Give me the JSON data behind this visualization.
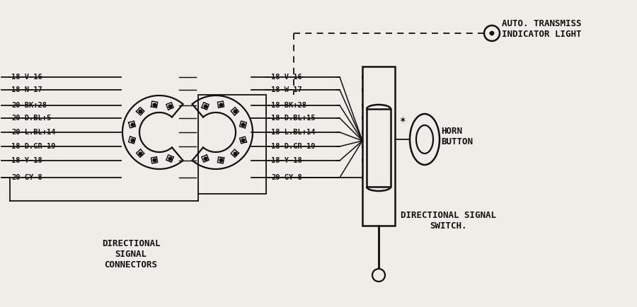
{
  "bg_color": "#f0ede8",
  "line_color": "#111111",
  "wire_labels_left": [
    "18-V-16",
    "18-N-17",
    "20-BK:28",
    "20-D.BL:5",
    "20-L.BL:14",
    "18-D.GR-19",
    "18-Y-18",
    "20-GY-8"
  ],
  "wire_labels_mid": [
    "18-V-16",
    "18-W-17",
    "18-BK:28",
    "18-D.BL:15",
    "18-L.BL:14",
    "18-D.GR-19",
    "18-Y-18",
    "20-GY-8"
  ],
  "connector_label": "DIRECTIONAL\nSIGNAL\nCONNECTORS",
  "horn_label": "HORN\nBUTTON",
  "dir_signal_label": "DIRECTIONAL SIGNAL\nSWITCH.",
  "auto_trans_label": "AUTO. TRANSMISS\nINDICATOR LIGHT"
}
